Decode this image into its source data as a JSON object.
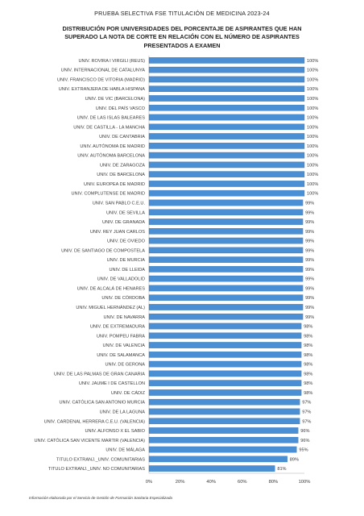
{
  "header": {
    "title": "PRUEBA SELECTIVA FSE TITULACIÓN DE MEDICINA 2023-24",
    "subtitle": "DISTRIBUCIÓN POR UNIVERSIDADES DEL PORCENTAJE DE ASPIRANTES QUE HAN SUPERADO LA NOTA DE CORTE EN RELACIÓN CON EL NÚMERO DE ASPIRANTES PRESENTADOS A EXAMEN"
  },
  "footer": {
    "note": "Información elaborada por el Servicio de Gestión de Formación Sanitaria Especializada"
  },
  "colors": {
    "bar": "#4a8fd4",
    "bar_edge": "#2f6eb0",
    "axis": "#c8c8c8"
  },
  "chart_data": {
    "type": "bar",
    "orientation": "horizontal",
    "title": "DISTRIBUCIÓN POR UNIVERSIDADES DEL PORCENTAJE DE ASPIRANTES QUE HAN SUPERADO LA NOTA DE CORTE EN RELACIÓN CON EL NÚMERO DE ASPIRANTES PRESENTADOS A EXAMEN",
    "xlim": [
      0,
      100
    ],
    "x_ticks": [
      "0%",
      "20%",
      "40%",
      "60%",
      "80%",
      "100%"
    ],
    "grid": false,
    "legend": "none",
    "categories": [
      "UNIV. ROVIRA I VIRGILI (REUS)",
      "UNIV. INTERNACIONAL DE CATALUNYA",
      "UNIV. FRANCISCO DE VITORIA (MADRID)",
      "UNIV. EXTRANJERA DE HABLA HISPANA",
      "UNIV. DE VIC (BARCELONA)",
      "UNIV. DEL PAÍS VASCO",
      "UNIV. DE LAS ISLAS BALEARES",
      "UNIV. DE CASTILLA - LA MANCHA",
      "UNIV. DE CANTABRIA",
      "UNIV. AUTÓNOMA DE MADRID",
      "UNIV. AUTÒNOMA BARCELONA",
      "UNIV. DE ZARAGOZA",
      "UNIV. DE BARCELONA",
      "UNIV. EUROPEA DE MADRID",
      "UNIV. COMPLUTENSE DE MADRID",
      "UNIV. SAN PABLO C.E.U.",
      "UNIV. DE SEVILLA",
      "UNIV. DE GRANADA",
      "UNIV. REY JUAN CARLOS",
      "UNIV. DE OVIEDO",
      "UNIV. DE SANTIAGO DE COMPOSTELA",
      "UNIV. DE MURCIA",
      "UNIV. DE LLEIDA",
      "UNIV. DE VALLADOLID",
      "UNIV. DE ALCALÁ DE HENARES",
      "UNIV. DE CÓRDOBA",
      "UNIV. MIGUEL HERNÁNDEZ (AL)",
      "UNIV. DE NAVARRA",
      "UNIV. DE EXTREMADURA",
      "UNIV. POMPEU FABRA",
      "UNIV. DE VALENCIA",
      "UNIV. DE SALAMANCA",
      "UNIV. DE GERONA",
      "UNIV. DE LAS PALMAS DE GRAN CANARIA",
      "UNIV. JAUME I DE CASTELLON",
      "UNIV. DE CÁDIZ",
      "UNIV. CATÓLICA SAN ANTONIO MURCIA",
      "UNIV. DE LA LAGUNA",
      "UNIV. CARDENAL HERRERA C.E.U. (VALENCIA)",
      "UNIV. ALFONSO X EL SABIO",
      "UNIV. CATÓLICA SAN VICENTE MARTIR (VALENCIA)",
      "UNIV. DE MÁLAGA",
      "TITULO EXTRANJ._UNIV. COMUNITARIAS",
      "TITULO EXTRANJ._UNIV. NO COMUNITARIAS"
    ],
    "values": [
      100,
      100,
      100,
      100,
      100,
      100,
      100,
      100,
      100,
      100,
      100,
      100,
      100,
      100,
      100,
      99,
      99,
      99,
      99,
      99,
      99,
      99,
      99,
      99,
      99,
      99,
      99,
      99,
      98,
      98,
      98,
      98,
      98,
      98,
      98,
      98,
      97,
      97,
      97,
      96,
      96,
      95,
      89,
      81
    ],
    "labels": [
      "100%",
      "100%",
      "100%",
      "100%",
      "100%",
      "100%",
      "100%",
      "100%",
      "100%",
      "100%",
      "100%",
      "100%",
      "100%",
      "100%",
      "100%",
      "99%",
      "99%",
      "99%",
      "99%",
      "99%",
      "99%",
      "99%",
      "99%",
      "99%",
      "99%",
      "99%",
      "99%",
      "99%",
      "98%",
      "98%",
      "98%",
      "98%",
      "98%",
      "98%",
      "98%",
      "98%",
      "97%",
      "97%",
      "97%",
      "96%",
      "96%",
      "95%",
      "89%",
      "81%"
    ]
  }
}
